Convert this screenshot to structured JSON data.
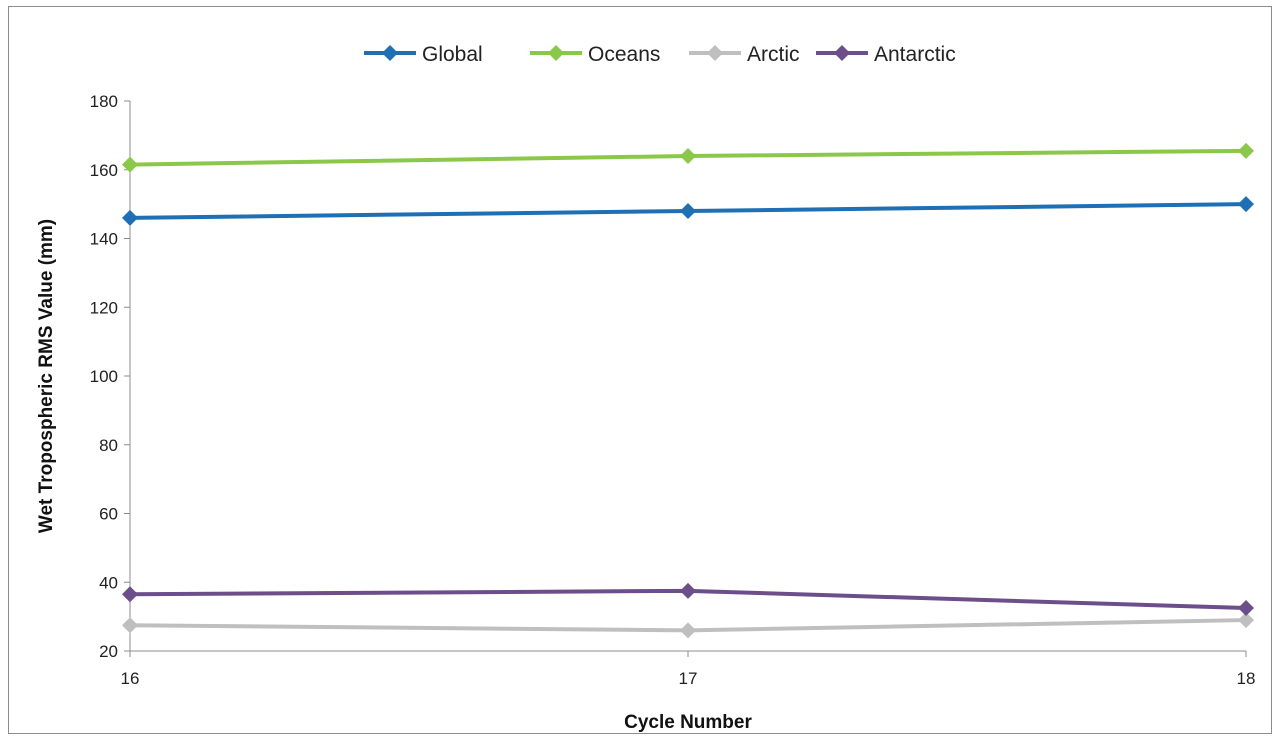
{
  "chart_data": {
    "type": "line",
    "x": [
      16,
      17,
      18
    ],
    "xlabel": "Cycle Number",
    "ylabel": "Wet Tropospheric RMS Value (mm)",
    "ylim": [
      20,
      180
    ],
    "yticks": [
      20,
      40,
      60,
      80,
      100,
      120,
      140,
      160,
      180
    ],
    "xticks": [
      "16",
      "17",
      "18"
    ],
    "grid": false,
    "legend_position": "top",
    "series": [
      {
        "name": "Global",
        "color": "#1f6fb4",
        "values": [
          146,
          148,
          150
        ]
      },
      {
        "name": "Oceans",
        "color": "#8bc84a",
        "values": [
          161.5,
          164,
          165.5
        ]
      },
      {
        "name": "Arctic",
        "color": "#bfbfbf",
        "values": [
          27.5,
          26,
          29
        ]
      },
      {
        "name": "Antarctic",
        "color": "#6b4e8a",
        "values": [
          36.5,
          37.5,
          32.5
        ]
      }
    ]
  }
}
